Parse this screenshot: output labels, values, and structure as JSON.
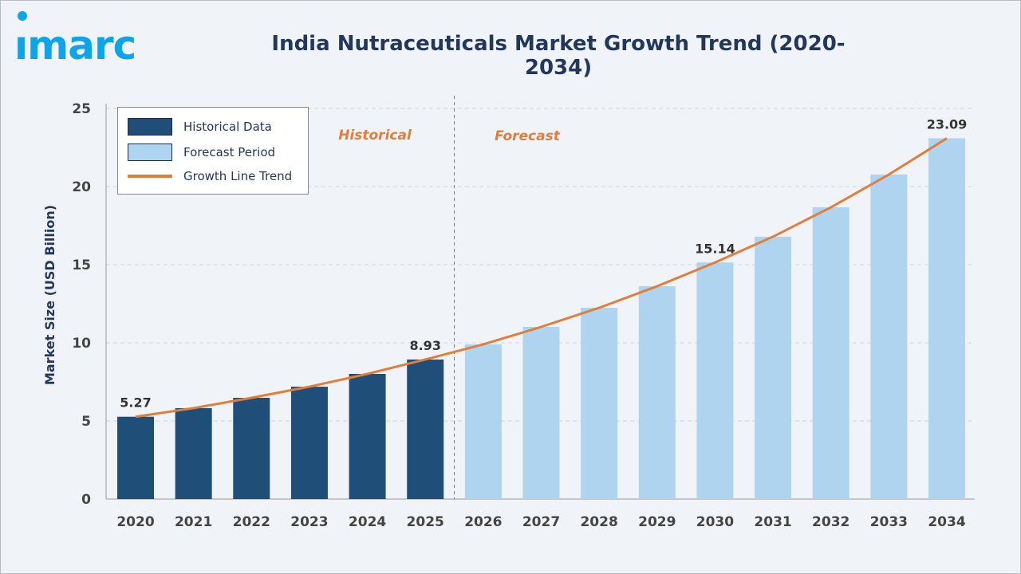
{
  "logo_text": "imarc",
  "colors": {
    "historical": "#1f4e79",
    "forecast": "#aed4ef",
    "trend": "#e07f3c",
    "logo": "#0fa3e8",
    "title": "#22375a"
  },
  "chart_data": {
    "type": "bar",
    "title": "India Nutraceuticals Market Growth Trend (2020-2034)",
    "xlabel": "",
    "ylabel": "Market Size (USD Billion)",
    "ylim": [
      0,
      25
    ],
    "yticks": [
      0,
      5,
      10,
      15,
      20,
      25
    ],
    "grid": true,
    "legend_placement": "top-left",
    "categories": [
      "2020",
      "2021",
      "2022",
      "2023",
      "2024",
      "2025",
      "2026",
      "2027",
      "2028",
      "2029",
      "2030",
      "2031",
      "2032",
      "2033",
      "2034"
    ],
    "series": [
      {
        "name": "Historical Data",
        "values": [
          5.27,
          5.82,
          6.48,
          7.19,
          8.01,
          8.93,
          null,
          null,
          null,
          null,
          null,
          null,
          null,
          null,
          null
        ]
      },
      {
        "name": "Forecast Period",
        "values": [
          null,
          null,
          null,
          null,
          null,
          null,
          9.9,
          11.02,
          12.24,
          13.62,
          15.14,
          16.79,
          18.67,
          20.77,
          23.09
        ]
      }
    ],
    "trend_line": {
      "name": "Growth Line Trend",
      "values": [
        5.27,
        5.82,
        6.48,
        7.19,
        8.01,
        8.93,
        9.9,
        11.02,
        12.24,
        13.62,
        15.14,
        16.79,
        18.67,
        20.77,
        23.09
      ]
    },
    "data_labels": [
      {
        "category": "2020",
        "text": "5.27"
      },
      {
        "category": "2025",
        "text": "8.93"
      },
      {
        "category": "2030",
        "text": "15.14"
      },
      {
        "category": "2034",
        "text": "23.09"
      }
    ],
    "annotations": {
      "historical": "Historical",
      "forecast": "Forecast"
    },
    "legend": [
      "Historical Data",
      "Forecast Period",
      "Growth Line Trend"
    ]
  }
}
